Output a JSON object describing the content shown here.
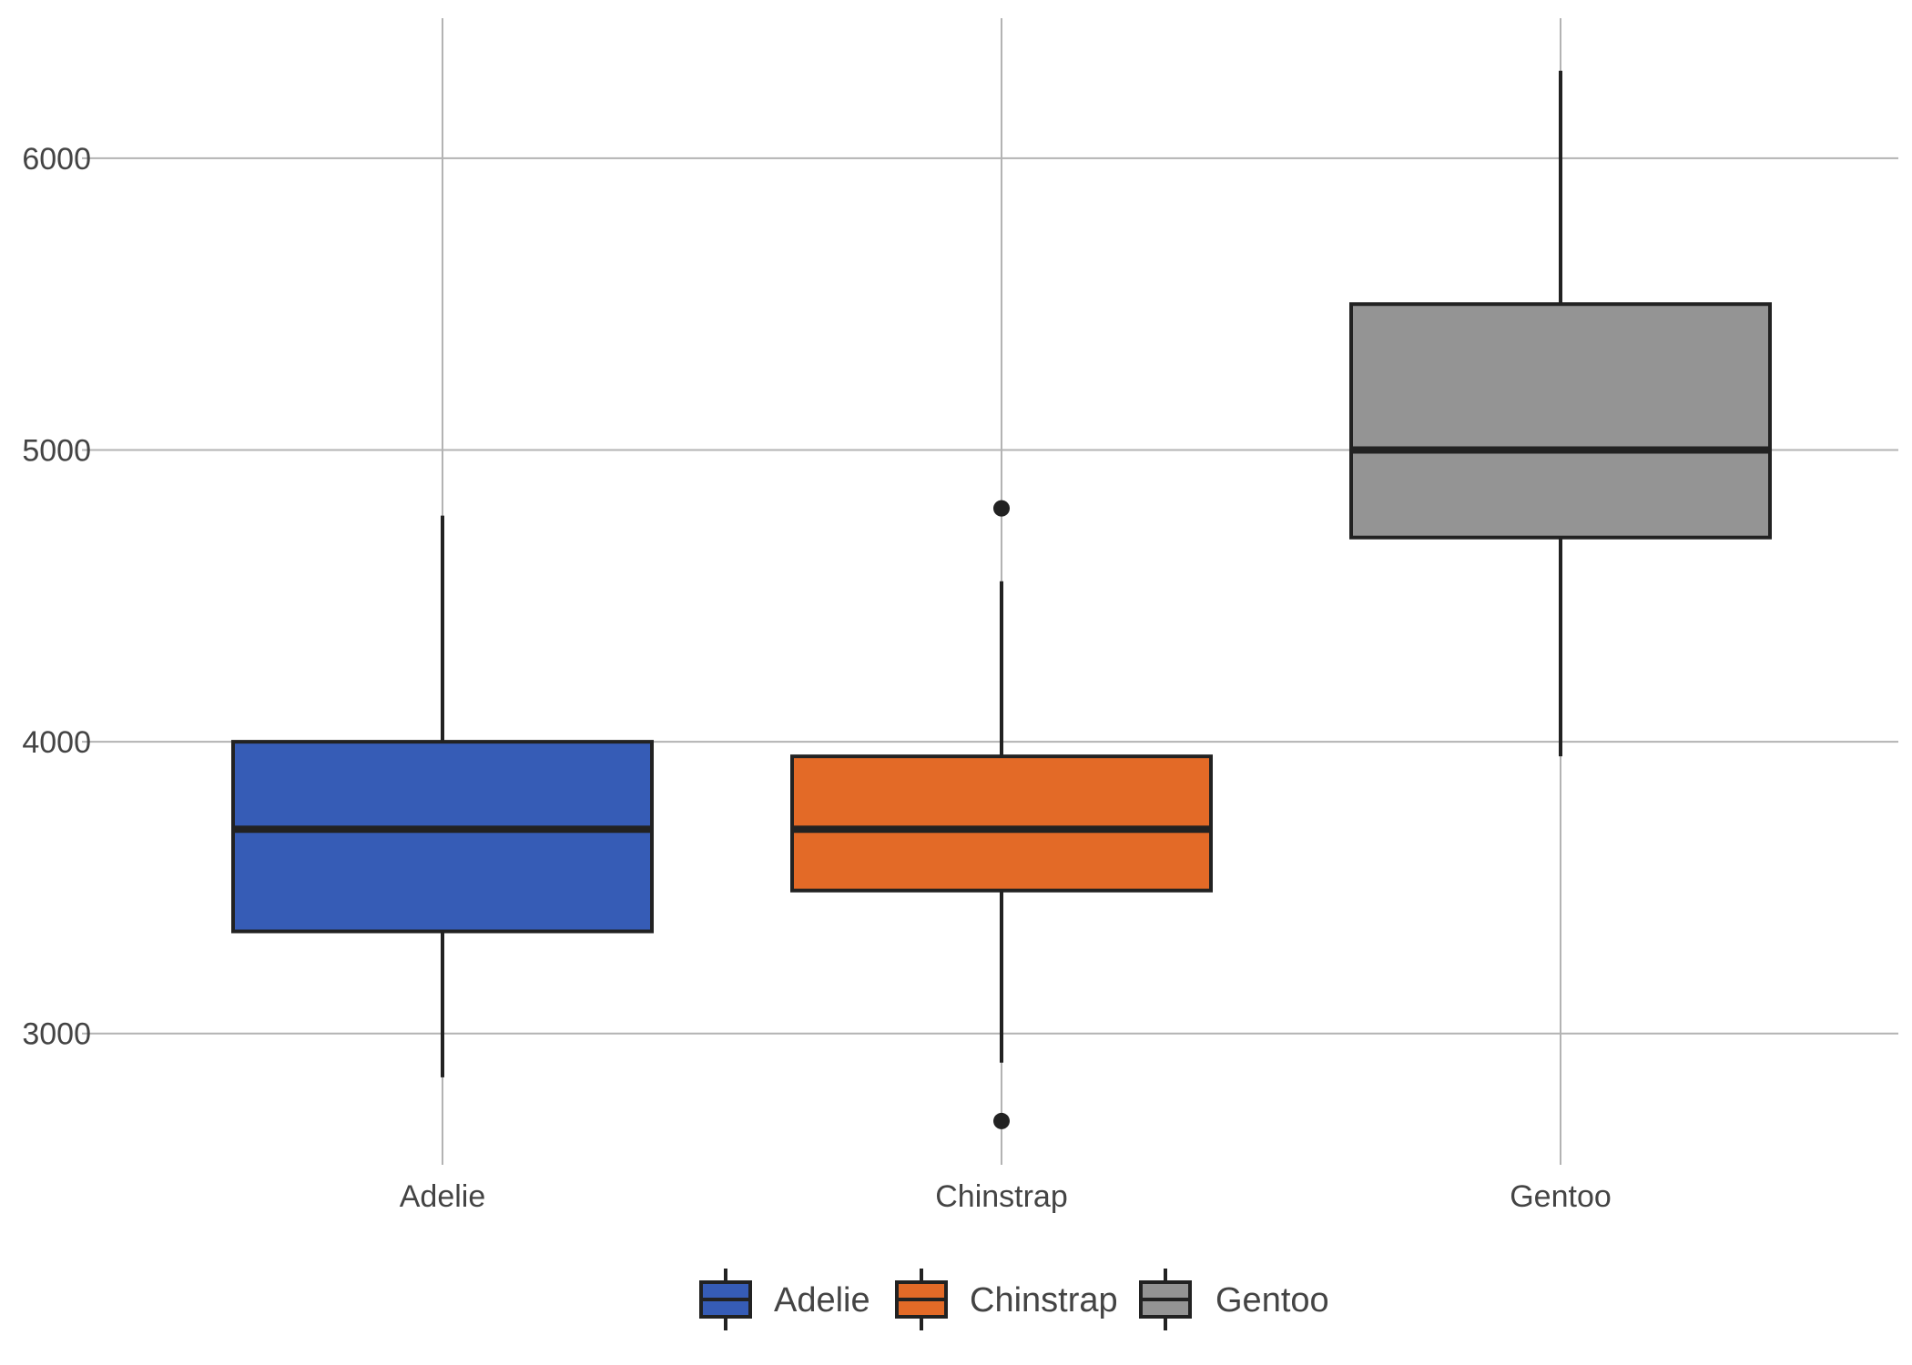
{
  "chart_data": {
    "type": "boxplot",
    "title": "",
    "xlabel": "",
    "ylabel": "",
    "categories": [
      "Adelie",
      "Chinstrap",
      "Gentoo"
    ],
    "ylim": [
      2550,
      6480
    ],
    "y_ticks": [
      3000,
      4000,
      5000,
      6000
    ],
    "grid": true,
    "legend_position": "bottom",
    "series": [
      {
        "name": "Adelie",
        "color": "#365CB6",
        "whisker_low": 2850,
        "q1": 3350,
        "median": 3700,
        "q3": 4000,
        "whisker_high": 4775,
        "outliers": []
      },
      {
        "name": "Chinstrap",
        "color": "#E36A27",
        "whisker_low": 2900,
        "q1": 3490,
        "median": 3700,
        "q3": 3950,
        "whisker_high": 4550,
        "outliers": [
          2700,
          4800
        ]
      },
      {
        "name": "Gentoo",
        "color": "#949494",
        "whisker_low": 3950,
        "q1": 4700,
        "median": 5000,
        "q3": 5500,
        "whisker_high": 6300,
        "outliers": []
      }
    ]
  }
}
